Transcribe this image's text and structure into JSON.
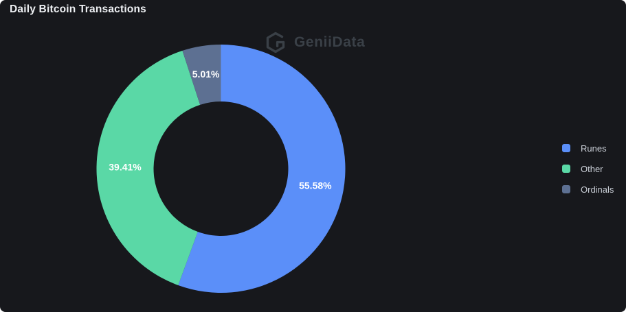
{
  "panel": {
    "title": "Daily Bitcoin Transactions"
  },
  "watermark": {
    "text": "GeniiData",
    "icon": "geniidata-logo",
    "color": "#3a4047"
  },
  "colors": {
    "background": "#17181c",
    "title_text": "#eef0f3",
    "legend_text": "#c9ced6",
    "slice_label_text": "#ffffff"
  },
  "legend": {
    "position": "right",
    "items": [
      {
        "label": "Runes",
        "color": "#5b8ff9"
      },
      {
        "label": "Other",
        "color": "#5ad8a6"
      },
      {
        "label": "Ordinals",
        "color": "#5d7092"
      }
    ]
  },
  "chart_data": {
    "type": "pie",
    "title": "Daily Bitcoin Transactions",
    "categories": [
      "Runes",
      "Other",
      "Ordinals"
    ],
    "values": [
      55.58,
      39.41,
      5.01
    ],
    "labels": [
      "55.58%",
      "39.41%",
      "5.01%"
    ],
    "colors": [
      "#5b8ff9",
      "#5ad8a6",
      "#5d7092"
    ],
    "unit": "%",
    "donut": true,
    "start_angle": "top",
    "direction": "clockwise",
    "label_position": "inside",
    "legend_position": "right",
    "grid": false
  }
}
